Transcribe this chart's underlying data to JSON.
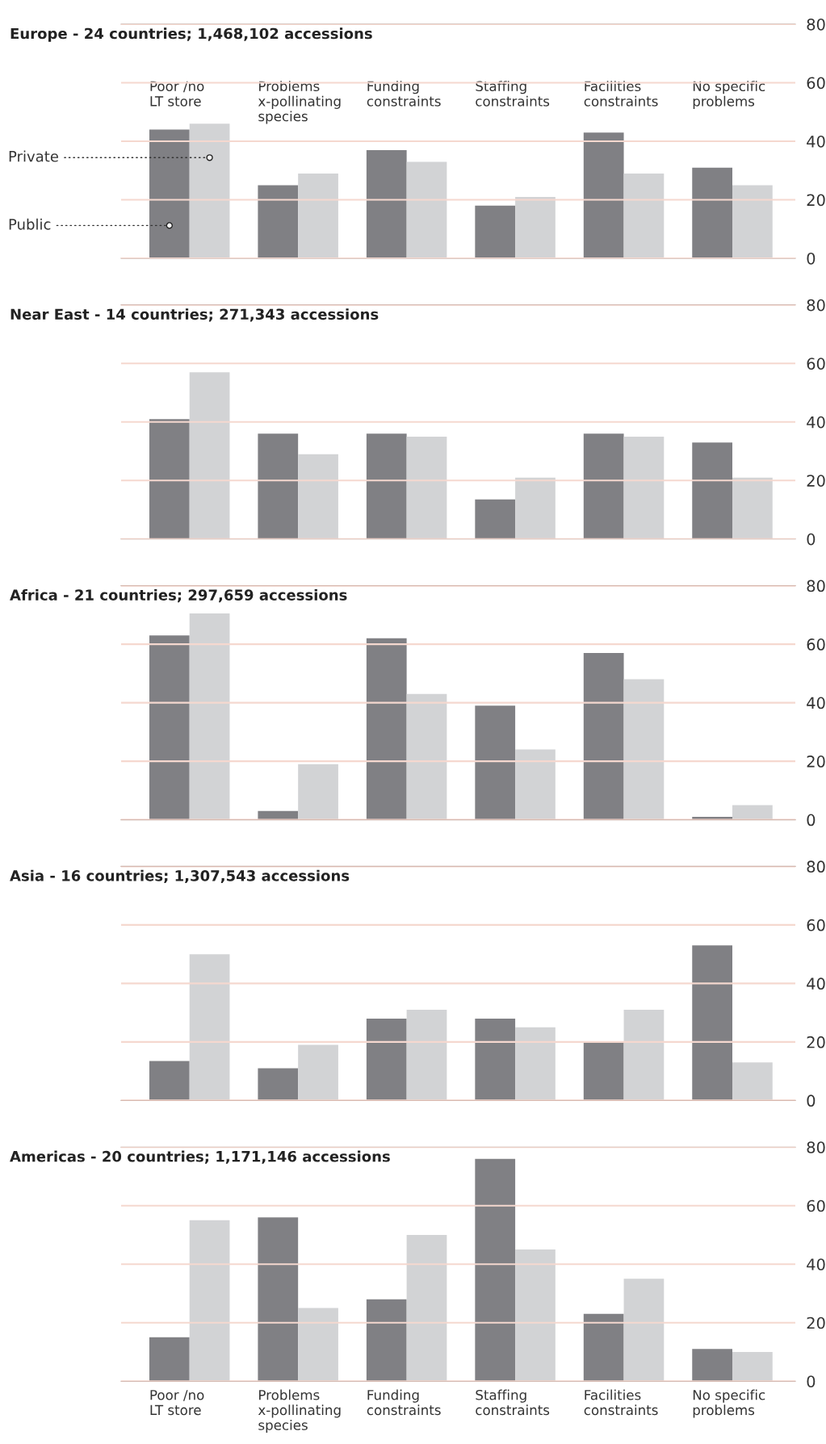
{
  "chart_data": [
    {
      "type": "bar",
      "title": "Europe - 24 countries; 1,468,102 accessions",
      "categories": [
        "Poor /no\nLT store",
        "Problems\nx-pollinating\nspecies",
        "Funding\nconstraints",
        "Staffing\nconstraints",
        "Facilities\nconstraints",
        "No specific\nproblems"
      ],
      "series": [
        {
          "name": "Public",
          "color": "#808084",
          "values": [
            44,
            25,
            37,
            18,
            43,
            31
          ]
        },
        {
          "name": "Private",
          "color": "#d2d3d5",
          "values": [
            46,
            29,
            33,
            21,
            29,
            25
          ]
        }
      ],
      "ylim": [
        0,
        80
      ],
      "yticks": [
        0,
        20,
        40,
        60,
        80
      ],
      "grid": "y",
      "legend": "left"
    },
    {
      "type": "bar",
      "title": "Near East - 14 countries; 271,343 accessions",
      "categories": [
        null,
        null,
        null,
        null,
        null,
        null
      ],
      "series": [
        {
          "color": "#808084",
          "values": [
            41,
            36,
            36,
            13.5,
            36,
            33
          ]
        },
        {
          "color": "#d2d3d5",
          "values": [
            57,
            29,
            35,
            21,
            35,
            21
          ]
        }
      ],
      "ylim": [
        0,
        80
      ],
      "yticks": [
        0,
        20,
        40,
        60,
        80
      ],
      "grid": "y",
      "tick_labels": "y"
    },
    {
      "type": "bar",
      "title": "Africa - 21 countries; 297,659 accessions",
      "categories": [
        null,
        null,
        null,
        null,
        null,
        null
      ],
      "series": [
        {
          "color": "#808084",
          "values": [
            63,
            3,
            62,
            39,
            57,
            1
          ]
        },
        {
          "color": "#d2d3d5",
          "values": [
            70.5,
            19,
            43,
            24,
            48,
            5
          ]
        }
      ],
      "ylim": [
        0,
        80
      ],
      "yticks": [
        0,
        20,
        40,
        60,
        80
      ],
      "grid": "y",
      "tick_labels": "y"
    },
    {
      "type": "bar",
      "title": "Asia - 16 countries; 1,307,543 accessions",
      "categories": [
        null,
        null,
        null,
        null,
        null,
        null
      ],
      "series": [
        {
          "color": "#808084",
          "values": [
            13.5,
            11,
            28,
            28,
            20,
            53
          ]
        },
        {
          "color": "#d2d3d5",
          "values": [
            50,
            19,
            31,
            25,
            31,
            13
          ]
        }
      ],
      "ylim": [
        0,
        80
      ],
      "yticks": [
        0,
        20,
        40,
        60,
        80
      ],
      "grid": "y",
      "tick_labels": "y"
    },
    {
      "type": "bar",
      "title": "Americas - 20 countries; 1,171,146 accessions",
      "categories": [
        "Poor /no\nLT store",
        "Problems\nx-pollinating\nspecies",
        "Funding\nconstraints",
        "Staffing\nconstraints",
        "Facilities\nconstraints",
        "No specific\nproblems"
      ],
      "series": [
        {
          "color": "#808084",
          "values": [
            15,
            56,
            28,
            76,
            23,
            11
          ]
        },
        {
          "color": "#d2d3d5",
          "values": [
            55,
            25,
            50,
            45,
            35,
            10
          ]
        }
      ],
      "ylim": [
        0,
        80
      ],
      "yticks": [
        0,
        20,
        40,
        60,
        80
      ],
      "grid": "y"
    }
  ]
}
